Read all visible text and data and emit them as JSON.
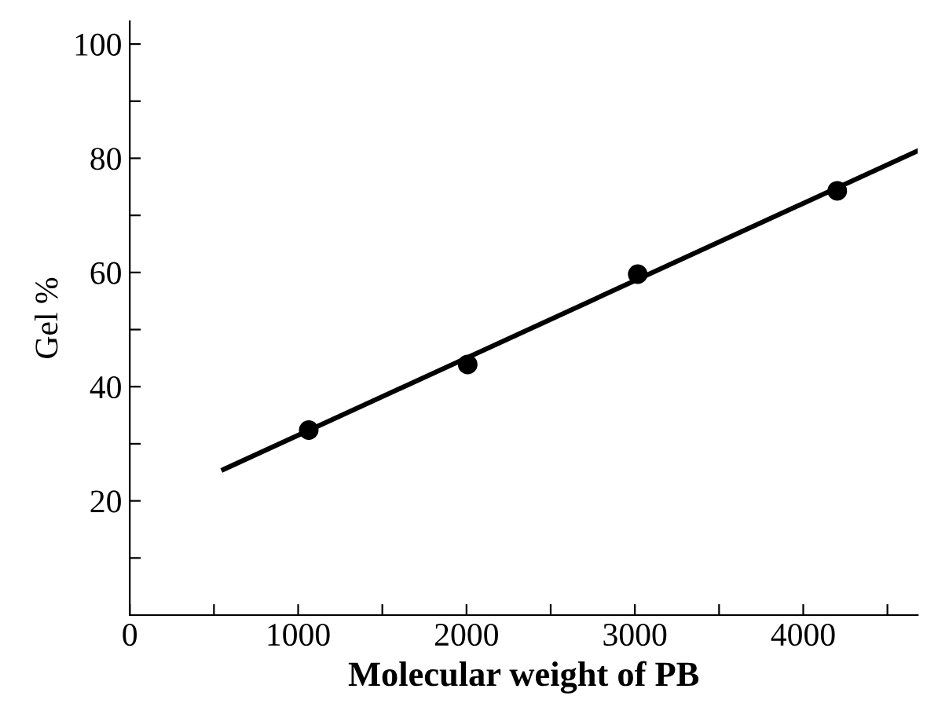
{
  "chart_data": {
    "type": "scatter",
    "xlabel": "Molecular weight of PB",
    "ylabel": "Gel %",
    "series": [
      {
        "color": "#000000",
        "marker": "circle",
        "x": [
          1063,
          2007,
          3017,
          4202
        ],
        "values": [
          32.4,
          43.9,
          59.7,
          74.3
        ]
      },
      {
        "type": "line",
        "color": "#000000",
        "marker": "none",
        "x": [
          557,
          4680
        ],
        "values": [
          25.5,
          81.3
        ]
      }
    ],
    "xlim": [
      0,
      4680
    ],
    "ylim": [
      0,
      104
    ],
    "xticks": [
      0,
      {
        "value": 500,
        "label": null
      },
      1000,
      {
        "value": 1500,
        "label": null
      },
      2000,
      {
        "value": 2500,
        "label": null
      },
      3000,
      {
        "value": 3500,
        "label": null
      },
      4000,
      {
        "value": 4500,
        "label": null
      }
    ],
    "yticks": [
      {
        "value": 10,
        "label": null
      },
      20,
      {
        "value": 30,
        "label": null
      },
      40,
      {
        "value": 50,
        "label": null
      },
      60,
      {
        "value": 70,
        "label": null
      },
      80,
      {
        "value": 90,
        "label": null
      },
      100
    ],
    "grid": false,
    "legend": false
  }
}
